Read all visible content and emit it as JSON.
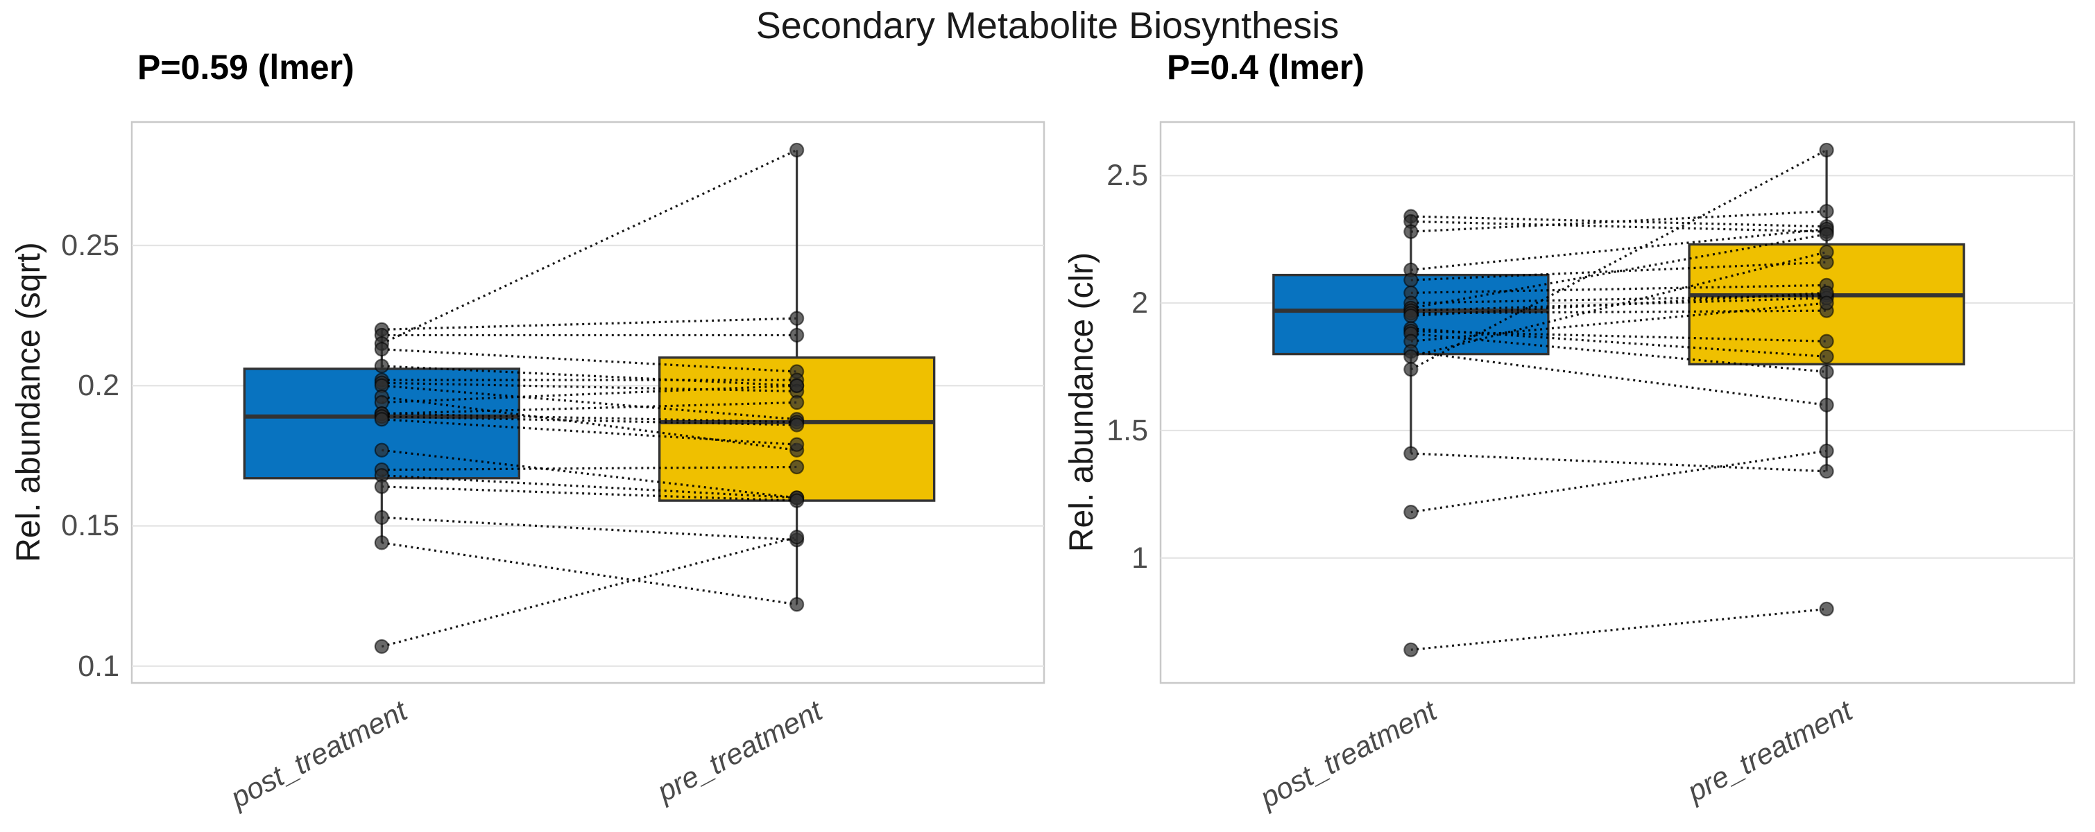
{
  "chart_data": {
    "type": "paired-boxplot",
    "title": "Secondary Metabolite Biosynthesis",
    "grid": "horizontal-only",
    "legend": "none",
    "style": {
      "background": "#ffffff",
      "panel_border_color": "#c9c9c9",
      "gridline_color": "#e4e4e4",
      "box_stroke_color": "#333333",
      "point_color": "#2f2f2f",
      "pair_line_color": "#000000",
      "tick_label_color": "#4d4d4d",
      "x_label_color": "#4a4a4a",
      "title_color": "#1a1a1a",
      "post_treatment_fill": "#0873C0",
      "pre_treatment_fill": "#EFC000"
    },
    "panels": [
      {
        "subtitle": "P=0.59 (lmer)",
        "y_label": "Rel. abundance (sqrt)",
        "x_categories": [
          "post_treatment",
          "pre_treatment"
        ],
        "y_ticks": [
          0.25,
          0.2,
          0.15,
          0.1
        ],
        "y_tick_labels": [
          "0.25",
          "0.2",
          "0.15",
          "0.1"
        ],
        "y_domain": [
          0.094,
          0.294
        ],
        "boxes": [
          {
            "category": "post_treatment",
            "fill": "#0873C0",
            "whisker_low": 0.144,
            "q1": 0.167,
            "median": 0.189,
            "q3": 0.206,
            "whisker_high": 0.22,
            "outliers": [
              0.107
            ]
          },
          {
            "category": "pre_treatment",
            "fill": "#EFC000",
            "whisker_low": 0.122,
            "q1": 0.159,
            "median": 0.187,
            "q3": 0.21,
            "whisker_high": 0.284,
            "outliers": []
          }
        ],
        "pairs": [
          [
            0.22,
            0.224
          ],
          [
            0.218,
            0.218
          ],
          [
            0.215,
            0.284
          ],
          [
            0.213,
            0.205
          ],
          [
            0.207,
            0.2
          ],
          [
            0.202,
            0.202
          ],
          [
            0.201,
            0.198
          ],
          [
            0.2,
            0.188
          ],
          [
            0.196,
            0.177
          ],
          [
            0.194,
            0.2
          ],
          [
            0.19,
            0.194
          ],
          [
            0.19,
            0.187
          ],
          [
            0.189,
            0.186
          ],
          [
            0.188,
            0.179
          ],
          [
            0.177,
            0.16
          ],
          [
            0.17,
            0.171
          ],
          [
            0.168,
            0.16
          ],
          [
            0.164,
            0.159
          ],
          [
            0.153,
            0.145
          ],
          [
            0.144,
            0.122
          ],
          [
            0.107,
            0.146
          ]
        ]
      },
      {
        "subtitle": "P=0.4 (lmer)",
        "y_label": "Rel. abundance (clr)",
        "x_categories": [
          "post_treatment",
          "pre_treatment"
        ],
        "y_ticks": [
          2.5,
          2,
          1.5,
          1
        ],
        "y_tick_labels": [
          "2.5",
          "2",
          "1.5",
          "1"
        ],
        "y_domain": [
          0.51,
          2.71
        ],
        "boxes": [
          {
            "category": "post_treatment",
            "fill": "#0873C0",
            "whisker_low": 1.41,
            "q1": 1.8,
            "median": 1.97,
            "q3": 2.11,
            "whisker_high": 2.34,
            "outliers": [
              1.18,
              0.64
            ]
          },
          {
            "category": "pre_treatment",
            "fill": "#EFC000",
            "whisker_low": 1.34,
            "q1": 1.76,
            "median": 2.03,
            "q3": 2.23,
            "whisker_high": 2.6,
            "outliers": [
              0.8
            ]
          }
        ],
        "pairs": [
          [
            2.34,
            2.3
          ],
          [
            2.32,
            2.28
          ],
          [
            2.28,
            2.36
          ],
          [
            2.13,
            2.29
          ],
          [
            2.09,
            2.16
          ],
          [
            2.04,
            2.07
          ],
          [
            2.0,
            2.03
          ],
          [
            1.98,
            2.27
          ],
          [
            1.97,
            2.02
          ],
          [
            1.96,
            1.97
          ],
          [
            1.95,
            2.04
          ],
          [
            1.9,
            1.79
          ],
          [
            1.89,
            1.85
          ],
          [
            1.88,
            1.73
          ],
          [
            1.85,
            2.0
          ],
          [
            1.81,
            1.6
          ],
          [
            1.79,
            2.2
          ],
          [
            1.74,
            2.6
          ],
          [
            1.41,
            1.34
          ],
          [
            1.18,
            1.42
          ],
          [
            0.64,
            0.8
          ]
        ]
      }
    ]
  }
}
